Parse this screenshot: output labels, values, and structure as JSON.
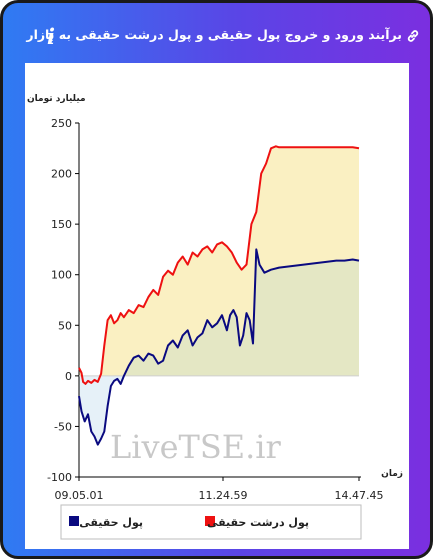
{
  "header": {
    "title": "برآیند ورود و خروج پول حقیقی و پول درشت حقیقی به بازار",
    "info_symbol": "i",
    "link_icon": "link-icon"
  },
  "watermark": "LiveTSE.ir",
  "colors": {
    "big_money": "#ee1111",
    "real_money": "#0a0a80",
    "big_fill": "#faf0c2",
    "real_fill_pos": "#e4e7c4",
    "real_fill_neg": "#e6f1f8"
  },
  "chart_data": {
    "type": "area",
    "ylabel": "میلیارد تومان",
    "xlabel": "زمان",
    "ylim": [
      -100,
      250
    ],
    "yticks": [
      -100,
      -50,
      0,
      50,
      100,
      150,
      200,
      250
    ],
    "xticks": [
      "09.05.01",
      "11.24.59",
      "14.47.45"
    ],
    "grid": false,
    "legend_position": "bottom",
    "x_range_minutes": [
      545.0,
      887.75
    ],
    "series": [
      {
        "name": "پول درشت حقیقی",
        "x_minutes": [
          545.0,
          548.0,
          550.0,
          553.0,
          556.0,
          560.0,
          564.0,
          568.0,
          572.0,
          576.0,
          580.0,
          584.0,
          588.0,
          592.0,
          596.0,
          600.0,
          606.0,
          612.0,
          618.0,
          624.0,
          630.0,
          636.0,
          642.0,
          648.0,
          654.0,
          660.0,
          666.0,
          672.0,
          678.0,
          684.0,
          690.0,
          696.0,
          702.0,
          708.0,
          714.0,
          720.0,
          726.0,
          732.0,
          738.0,
          744.0,
          750.0,
          756.0,
          762.0,
          768.0,
          774.0,
          780.0,
          786.0,
          790.0,
          794.0,
          800.0,
          806.0,
          812.0,
          818.0,
          824.0,
          830.0,
          840.0,
          850.0,
          860.0,
          870.0,
          880.0,
          887.75
        ],
        "values": [
          8,
          3,
          -6,
          -8,
          -5,
          -7,
          -4,
          -6,
          2,
          30,
          55,
          60,
          52,
          55,
          62,
          58,
          65,
          62,
          70,
          68,
          78,
          85,
          80,
          98,
          104,
          100,
          112,
          118,
          110,
          122,
          118,
          125,
          128,
          122,
          130,
          132,
          128,
          122,
          112,
          105,
          110,
          150,
          162,
          200,
          210,
          225,
          227,
          226,
          226,
          226,
          226,
          226,
          226,
          226,
          226,
          226,
          226,
          226,
          226,
          226,
          225
        ]
      },
      {
        "name": "پول حقیقی",
        "x_minutes": [
          545.0,
          548.0,
          552.0,
          556.0,
          560.0,
          564.0,
          568.0,
          572.0,
          576.0,
          580.0,
          584.0,
          588.0,
          592.0,
          596.0,
          600.0,
          606.0,
          612.0,
          618.0,
          624.0,
          630.0,
          636.0,
          642.0,
          648.0,
          654.0,
          660.0,
          666.0,
          672.0,
          678.0,
          684.0,
          690.0,
          696.0,
          702.0,
          708.0,
          714.0,
          720.0,
          726.0,
          730.0,
          734.0,
          738.0,
          742.0,
          746.0,
          750.0,
          754.0,
          758.0,
          762.0,
          766.0,
          772.0,
          780.0,
          790.0,
          800.0,
          810.0,
          820.0,
          830.0,
          840.0,
          850.0,
          860.0,
          870.0,
          880.0,
          887.75
        ],
        "values": [
          -20,
          -35,
          -45,
          -38,
          -55,
          -60,
          -68,
          -62,
          -55,
          -30,
          -10,
          -5,
          -3,
          -8,
          0,
          10,
          18,
          20,
          15,
          22,
          20,
          12,
          15,
          30,
          35,
          28,
          40,
          45,
          30,
          38,
          42,
          55,
          48,
          52,
          60,
          45,
          60,
          65,
          58,
          30,
          40,
          62,
          55,
          32,
          125,
          110,
          102,
          105,
          107,
          108,
          109,
          110,
          111,
          112,
          113,
          114,
          114,
          115,
          114
        ]
      }
    ]
  }
}
